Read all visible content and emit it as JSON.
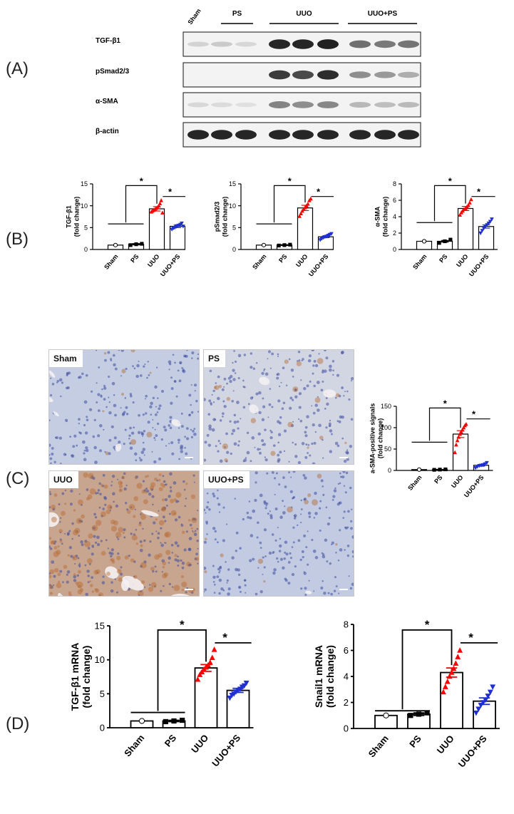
{
  "panel_labels": [
    "(A)",
    "(B)",
    "(C)",
    "(D)"
  ],
  "blot": {
    "group_labels": [
      "Sham",
      "PS",
      "UUO",
      "UUO+PS"
    ],
    "rows": [
      {
        "label": "TGF-β1",
        "intensities": [
          0.12,
          0.16,
          0.1,
          0.95,
          0.95,
          0.98,
          0.6,
          0.55,
          0.58
        ]
      },
      {
        "label": "pSmad2/3",
        "intensities": [
          0.0,
          0.0,
          0.0,
          0.85,
          0.78,
          0.92,
          0.45,
          0.4,
          0.3
        ]
      },
      {
        "label": "α-SMA",
        "intensities": [
          0.1,
          0.08,
          0.06,
          0.5,
          0.45,
          0.48,
          0.25,
          0.22,
          0.24
        ]
      },
      {
        "label": "β-actin",
        "intensities": [
          0.95,
          0.95,
          0.95,
          0.95,
          0.95,
          0.95,
          0.95,
          0.95,
          0.95
        ]
      }
    ]
  },
  "histology": [
    {
      "label": "Sham",
      "tone": "#c4cde2",
      "brown": 0.05
    },
    {
      "label": "PS",
      "tone": "#d2d6e3",
      "brown": 0.08
    },
    {
      "label": "UUO",
      "tone": "#c8a58e",
      "brown": 0.7
    },
    {
      "label": "UUO+PS",
      "tone": "#c2cbe2",
      "brown": 0.05
    }
  ],
  "colors": {
    "sham": "#000000",
    "ps": "#000000",
    "uuo": "#ff0000",
    "uuops": "#1f2fd0"
  },
  "chart_data": [
    {
      "type": "bar",
      "panel": "B",
      "categories": [
        "Sham",
        "PS",
        "UUO",
        "UUO+PS"
      ],
      "values": [
        1.0,
        1.2,
        9.3,
        5.3
      ],
      "errors": [
        0,
        0.15,
        0.5,
        0.3
      ],
      "ylabel": "TGF-β1\n(fold change)",
      "ylim": [
        0,
        15
      ],
      "yticks": [
        0,
        5,
        10,
        15
      ],
      "points": [
        [
          1.0
        ],
        [
          1.0,
          1.2,
          1.3
        ],
        [
          8.6,
          8.8,
          9.0,
          9.2,
          9.4,
          9.6,
          10.0,
          10.5,
          11.2,
          8.4
        ],
        [
          4.6,
          4.9,
          5.0,
          5.2,
          5.4,
          5.5,
          5.7,
          6.0,
          5.3
        ]
      ],
      "significance": [
        "*",
        "*"
      ]
    },
    {
      "type": "bar",
      "panel": "B",
      "categories": [
        "Sham",
        "PS",
        "UUO",
        "UUO+PS"
      ],
      "values": [
        1.0,
        1.0,
        9.5,
        2.9
      ],
      "errors": [
        0,
        0.1,
        0.6,
        0.2
      ],
      "ylabel": "pSmad2/3\n(fold change)",
      "ylim": [
        0,
        15
      ],
      "yticks": [
        0,
        5,
        10,
        15
      ],
      "points": [
        [
          1.0
        ],
        [
          0.9,
          1.0,
          1.1
        ],
        [
          7.6,
          8.2,
          8.8,
          9.2,
          9.6,
          10.0,
          10.4,
          11.2,
          11.6
        ],
        [
          2.2,
          2.5,
          2.7,
          2.9,
          3.0,
          3.2,
          3.4,
          3.6
        ]
      ],
      "significance": [
        "*",
        "*"
      ]
    },
    {
      "type": "bar",
      "panel": "B",
      "categories": [
        "Sham",
        "PS",
        "UUO",
        "UUO+PS"
      ],
      "values": [
        1.0,
        1.0,
        5.0,
        2.8
      ],
      "errors": [
        0,
        0.1,
        0.25,
        0.2
      ],
      "ylabel": "α-SMA\n(fold change)",
      "ylim": [
        0,
        8
      ],
      "yticks": [
        0,
        2,
        4,
        6,
        8
      ],
      "points": [
        [
          1.0
        ],
        [
          0.8,
          1.0,
          1.2
        ],
        [
          4.2,
          4.5,
          4.7,
          4.9,
          5.0,
          5.2,
          5.4,
          5.7,
          6.1
        ],
        [
          2.0,
          2.3,
          2.6,
          2.8,
          3.0,
          3.2,
          3.4,
          3.7
        ]
      ],
      "significance": [
        "*",
        "*"
      ]
    },
    {
      "type": "bar",
      "panel": "C",
      "categories": [
        "Sham",
        "PS",
        "UUO",
        "UUO+PS"
      ],
      "values": [
        2,
        2,
        85,
        12
      ],
      "errors": [
        0,
        0.5,
        8,
        2
      ],
      "ylabel": "a-SMA-positive signals\n(fold change)",
      "ylim": [
        0,
        150
      ],
      "yticks": [
        0,
        50,
        100,
        150
      ],
      "points": [
        [
          2
        ],
        [
          1.5,
          2,
          2.5
        ],
        [
          42,
          60,
          70,
          78,
          85,
          90,
          95,
          100,
          105,
          108
        ],
        [
          6,
          9,
          11,
          12,
          13,
          15,
          18
        ]
      ],
      "significance": [
        "*",
        "*"
      ]
    },
    {
      "type": "bar",
      "panel": "D",
      "categories": [
        "Sham",
        "PS",
        "UUO",
        "UUO+PS"
      ],
      "values": [
        1.0,
        1.0,
        8.8,
        5.5
      ],
      "errors": [
        0,
        0.1,
        0.5,
        0.3
      ],
      "ylabel": "TGF-β1 mRNA\n(fold change)",
      "ylim": [
        0,
        15
      ],
      "yticks": [
        0,
        5,
        10,
        15
      ],
      "points": [
        [
          1.0
        ],
        [
          0.9,
          1.0,
          1.1
        ],
        [
          7.1,
          7.8,
          8.2,
          8.6,
          8.9,
          9.2,
          9.6,
          10.3,
          11.5
        ],
        [
          4.4,
          4.8,
          5.0,
          5.3,
          5.5,
          5.7,
          6.0,
          6.2,
          6.6
        ]
      ],
      "significance": [
        "*",
        "*"
      ]
    },
    {
      "type": "bar",
      "panel": "D",
      "categories": [
        "Sham",
        "PS",
        "UUO",
        "UUO+PS"
      ],
      "values": [
        1.0,
        1.1,
        4.3,
        2.1
      ],
      "errors": [
        0,
        0.1,
        0.35,
        0.25
      ],
      "ylabel": "Snail1 mRNA\n(fold change)",
      "ylim": [
        0,
        8
      ],
      "yticks": [
        0,
        2,
        4,
        6,
        8
      ],
      "points": [
        [
          1.0
        ],
        [
          1.0,
          1.1,
          1.2
        ],
        [
          2.8,
          3.2,
          3.6,
          4.0,
          4.3,
          4.6,
          5.0,
          5.5,
          6.0
        ],
        [
          1.2,
          1.5,
          1.8,
          2.0,
          2.2,
          2.5,
          2.8,
          3.2
        ]
      ],
      "significance": [
        "*",
        "*"
      ]
    }
  ]
}
